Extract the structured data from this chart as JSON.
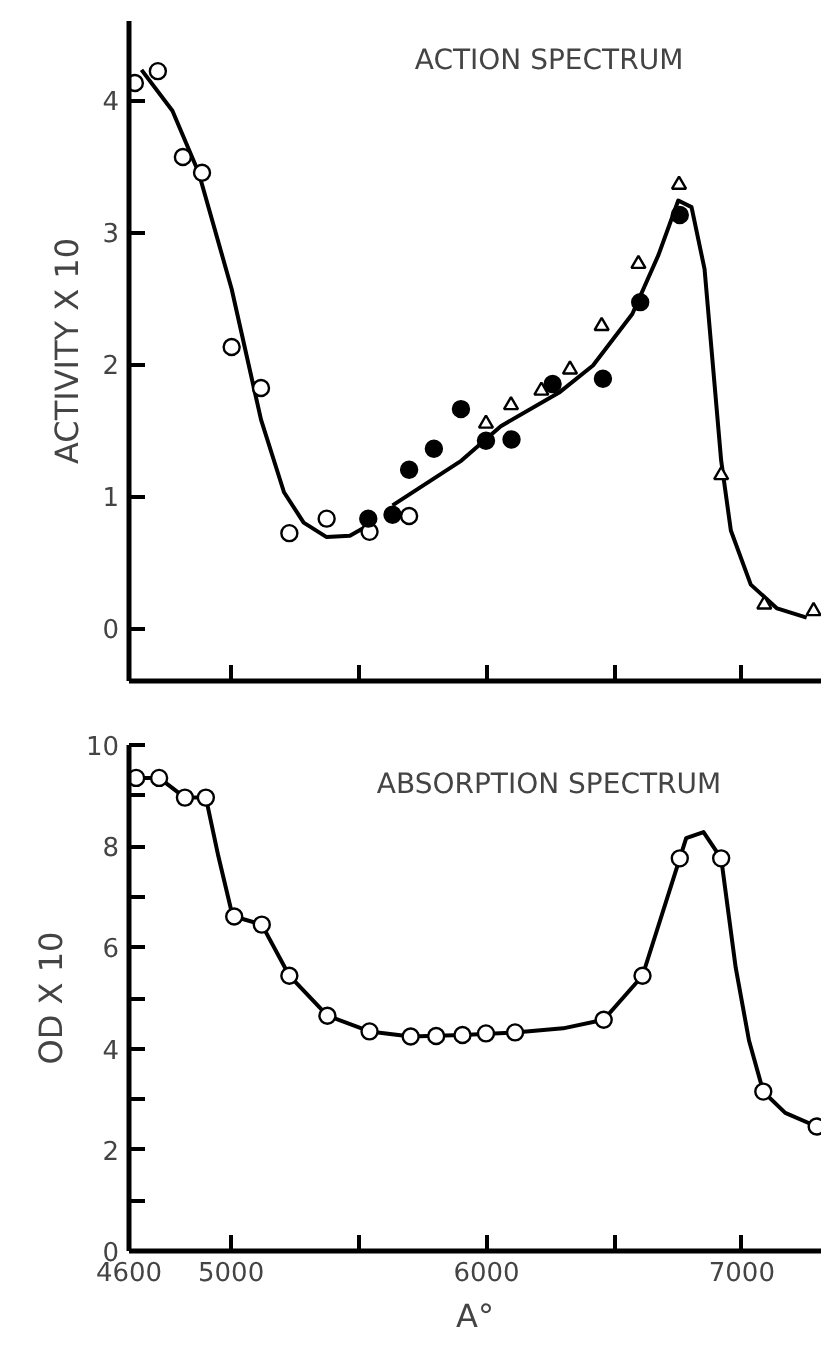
{
  "chart_data": [
    {
      "type": "scatter",
      "title": "ACTION SPECTRUM",
      "ylabel": "ACTIVITY X 10",
      "xlim": [
        4600,
        7310
      ],
      "ylim": [
        -0.4,
        4.6
      ],
      "xticks": [
        {
          "value": 5000,
          "label": null
        },
        {
          "value": 5500,
          "label": null
        },
        {
          "value": 6000,
          "label": null
        },
        {
          "value": 6500,
          "label": null
        },
        {
          "value": 7000,
          "label": null
        }
      ],
      "yticks": [
        0,
        1,
        2,
        3,
        4
      ],
      "tick_labels": "y",
      "series": [
        {
          "type": "line",
          "marker": "none",
          "color": "#000000",
          "x": [
            4649,
            4770,
            4873,
            5002,
            5117,
            5207,
            5284,
            5374,
            5465,
            5529,
            null,
            5632,
            5902,
            6056,
            6288,
            6417,
            6571,
            6674,
            6751,
            6803,
            6854,
            6919,
            6957,
            7035,
            7138,
            7254
          ],
          "values": [
            4.23,
            3.92,
            3.45,
            2.57,
            1.58,
            1.03,
            0.8,
            0.69,
            0.7,
            0.77,
            null,
            0.93,
            1.27,
            1.53,
            1.79,
            1.99,
            2.38,
            2.83,
            3.24,
            3.19,
            2.72,
            1.27,
            0.74,
            0.33,
            0.15,
            0.08
          ]
        },
        {
          "marker": "circle",
          "color": "#ffffff",
          "x": [
            4623,
            4713,
            4811,
            4886,
            5002,
            5117,
            5228,
            5374,
            5542,
            5697
          ],
          "values": [
            4.13,
            4.22,
            3.57,
            3.45,
            2.13,
            1.82,
            0.72,
            0.83,
            0.73,
            0.85
          ]
        },
        {
          "marker": "circle",
          "color": "#000000",
          "x": [
            5537,
            5632,
            5697,
            5794,
            5900,
            5998,
            6098,
            6259,
            6456,
            6602,
            6757
          ],
          "values": [
            0.83,
            0.86,
            1.2,
            1.36,
            1.66,
            1.42,
            1.43,
            1.85,
            1.89,
            2.47,
            3.13
          ]
        },
        {
          "marker": "triangle",
          "color": "#ffffff",
          "x": [
            5998,
            6096,
            6215,
            6327,
            6451,
            6595,
            6754,
            6919,
            7088,
            7281
          ],
          "values": [
            1.55,
            1.69,
            1.8,
            1.96,
            2.29,
            2.76,
            3.36,
            1.16,
            0.18,
            0.13
          ]
        }
      ]
    },
    {
      "type": "scatter",
      "title": "ABSORPTION SPECTRUM",
      "ylabel": "OD X 10",
      "xlabel": "A°",
      "xlim": [
        4600,
        7310
      ],
      "ylim": [
        0,
        10
      ],
      "xticks": [
        4600,
        5000,
        {
          "value": 5500,
          "label": null
        },
        6000,
        {
          "value": 6500,
          "label": null
        },
        7000
      ],
      "yticks": [
        0,
        {
          "value": 1,
          "label": null
        },
        2,
        {
          "value": 3,
          "label": null
        },
        4,
        {
          "value": 5,
          "label": null
        },
        6,
        {
          "value": 7,
          "label": null
        },
        8,
        {
          "value": 9,
          "label": null
        },
        10
      ],
      "series": [
        {
          "type": "line",
          "marker": "none",
          "color": "#000000",
          "x": [
            4628,
            4718,
            4819,
            4901,
            4950,
            5002,
            5012,
            5120,
            5228,
            5377,
            5542,
            5703,
            5906,
            6112,
            6300,
            6459,
            6611,
            6757,
            6782,
            6850,
            6919,
            6976,
            7028,
            7084,
            7170,
            7293
          ],
          "values": [
            9.35,
            9.35,
            8.96,
            8.96,
            7.8,
            6.7,
            6.61,
            6.45,
            5.44,
            4.65,
            4.34,
            4.24,
            4.27,
            4.32,
            4.4,
            4.57,
            5.44,
            7.76,
            8.16,
            8.28,
            7.76,
            5.6,
            4.16,
            3.15,
            2.73,
            2.46
          ]
        },
        {
          "marker": "circle",
          "color": "#ffffff",
          "x": [
            4628,
            4718,
            4819,
            4901,
            5012,
            5120,
            5228,
            5377,
            5542,
            5703,
            5803,
            5906,
            5998,
            6112,
            6459,
            6611,
            6757,
            6919,
            7084,
            7293
          ],
          "values": [
            9.35,
            9.35,
            8.96,
            8.96,
            6.61,
            6.45,
            5.44,
            4.65,
            4.34,
            4.24,
            4.25,
            4.27,
            4.3,
            4.32,
            4.57,
            5.44,
            7.76,
            7.76,
            3.15,
            2.46
          ]
        }
      ]
    }
  ]
}
